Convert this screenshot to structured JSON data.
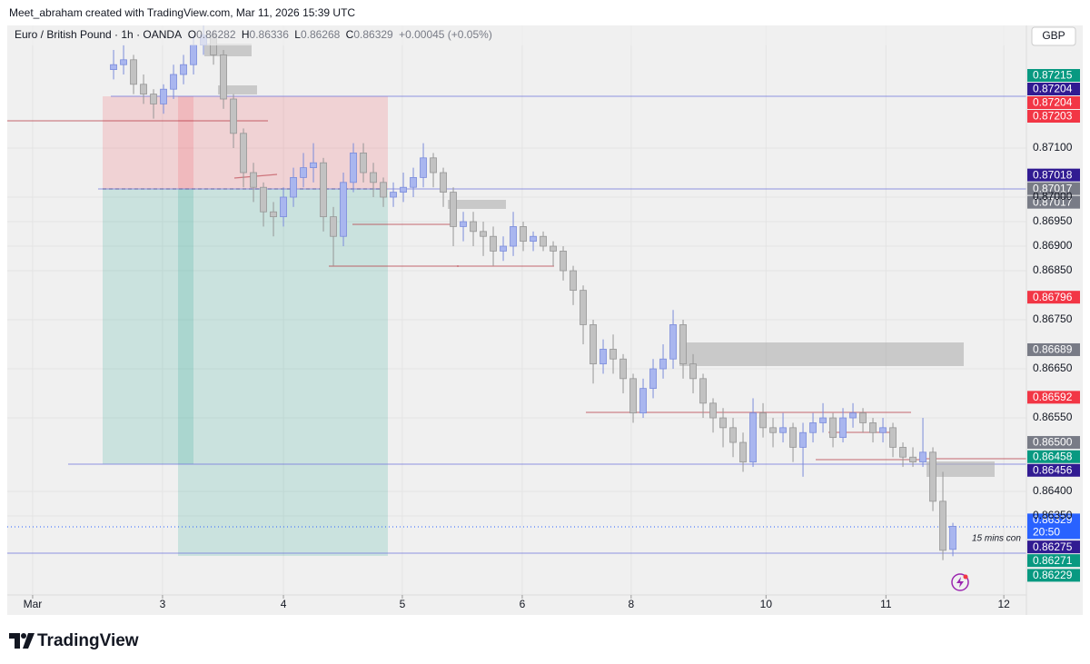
{
  "chart_data": {
    "type": "candlestick",
    "attribution": "Meet_abraham created with TradingView.com, Mar 11, 2026 15:39 UTC",
    "symbol": "Euro / British Pound · 1h · OANDA",
    "legend": [
      {
        "key": "O",
        "value": "0.86282"
      },
      {
        "key": "H",
        "value": "0.86336"
      },
      {
        "key": "L",
        "value": "0.86268"
      },
      {
        "key": "C",
        "value": "0.86329"
      }
    ],
    "change": "+0.00045 (+0.05%)",
    "currency": "GBP",
    "up_color": "#a9b6ef",
    "down_color": "#c2c2c2",
    "xlim": [
      -10.64,
      91.36
    ],
    "xticks": [
      {
        "value": -8.1,
        "label": "Mar"
      },
      {
        "value": 4.9,
        "label": "3"
      },
      {
        "value": 17.0,
        "label": "4"
      },
      {
        "value": 28.9,
        "label": "5"
      },
      {
        "value": 40.9,
        "label": "6"
      },
      {
        "value": 51.8,
        "label": "8"
      },
      {
        "value": 65.3,
        "label": "10"
      },
      {
        "value": 77.3,
        "label": "11"
      },
      {
        "value": 89.1,
        "label": "12"
      }
    ],
    "ylim": [
      0.86189,
      0.8735
    ],
    "yticks": [
      {
        "value": 0.871,
        "label": "0.87100"
      },
      {
        "value": 0.87,
        "label": "0.87000"
      },
      {
        "value": 0.8695,
        "label": "0.86950"
      },
      {
        "value": 0.869,
        "label": "0.86900"
      },
      {
        "value": 0.8685,
        "label": "0.86850"
      },
      {
        "value": 0.8675,
        "label": "0.86750"
      },
      {
        "value": 0.8665,
        "label": "0.86650"
      },
      {
        "value": 0.8655,
        "label": "0.86550"
      },
      {
        "value": 0.864,
        "label": "0.86400"
      },
      {
        "value": 0.8635,
        "label": "0.86350"
      }
    ],
    "grid": true,
    "ohlc": [
      [
        0.8726,
        0.873,
        0.8724,
        0.8727
      ],
      [
        0.8727,
        0.8731,
        0.8725,
        0.8728
      ],
      [
        0.8728,
        0.8729,
        0.8721,
        0.8723
      ],
      [
        0.8723,
        0.8725,
        0.8719,
        0.8721
      ],
      [
        0.8721,
        0.8722,
        0.8716,
        0.8719
      ],
      [
        0.8719,
        0.8723,
        0.8717,
        0.8722
      ],
      [
        0.8722,
        0.8727,
        0.872,
        0.8725
      ],
      [
        0.8725,
        0.8729,
        0.8723,
        0.8727
      ],
      [
        0.8727,
        0.8733,
        0.8725,
        0.8731
      ],
      [
        0.8731,
        0.8735,
        0.8729,
        0.8733
      ],
      [
        0.8733,
        0.8734,
        0.8727,
        0.8729
      ],
      [
        0.8729,
        0.873,
        0.8718,
        0.872
      ],
      [
        0.872,
        0.8721,
        0.871,
        0.8713
      ],
      [
        0.8713,
        0.8714,
        0.8702,
        0.8705
      ],
      [
        0.8705,
        0.8707,
        0.8699,
        0.8702
      ],
      [
        0.8702,
        0.8703,
        0.8694,
        0.8697
      ],
      [
        0.8697,
        0.8699,
        0.8692,
        0.8696
      ],
      [
        0.8696,
        0.8702,
        0.8694,
        0.87
      ],
      [
        0.87,
        0.8706,
        0.8698,
        0.8704
      ],
      [
        0.8704,
        0.8709,
        0.8702,
        0.8706
      ],
      [
        0.8706,
        0.8711,
        0.8703,
        0.8707
      ],
      [
        0.8707,
        0.8708,
        0.8693,
        0.8696
      ],
      [
        0.8696,
        0.8698,
        0.8686,
        0.8692
      ],
      [
        0.8692,
        0.8705,
        0.869,
        0.8703
      ],
      [
        0.8703,
        0.8711,
        0.8701,
        0.8709
      ],
      [
        0.8709,
        0.8711,
        0.8703,
        0.8705
      ],
      [
        0.8705,
        0.8707,
        0.87,
        0.8703
      ],
      [
        0.8703,
        0.8704,
        0.8698,
        0.87
      ],
      [
        0.87,
        0.8703,
        0.8698,
        0.8701
      ],
      [
        0.8701,
        0.8705,
        0.8699,
        0.8702
      ],
      [
        0.8702,
        0.8706,
        0.87,
        0.8704
      ],
      [
        0.8704,
        0.8711,
        0.8702,
        0.8708
      ],
      [
        0.8708,
        0.8709,
        0.8702,
        0.8705
      ],
      [
        0.8705,
        0.8706,
        0.8698,
        0.8701
      ],
      [
        0.8701,
        0.8702,
        0.869,
        0.8694
      ],
      [
        0.8694,
        0.8697,
        0.8691,
        0.8695
      ],
      [
        0.8695,
        0.8697,
        0.869,
        0.8693
      ],
      [
        0.8693,
        0.8695,
        0.8688,
        0.8692
      ],
      [
        0.8692,
        0.8694,
        0.8686,
        0.8689
      ],
      [
        0.8689,
        0.8692,
        0.8687,
        0.869
      ],
      [
        0.869,
        0.8697,
        0.8688,
        0.8694
      ],
      [
        0.8694,
        0.8695,
        0.8689,
        0.8691
      ],
      [
        0.8691,
        0.8693,
        0.8689,
        0.8692
      ],
      [
        0.8692,
        0.8693,
        0.8689,
        0.869
      ],
      [
        0.869,
        0.8691,
        0.8686,
        0.8689
      ],
      [
        0.8689,
        0.869,
        0.8683,
        0.8685
      ],
      [
        0.8685,
        0.8686,
        0.8678,
        0.8681
      ],
      [
        0.8681,
        0.8682,
        0.867,
        0.8674
      ],
      [
        0.8674,
        0.8675,
        0.8662,
        0.8666
      ],
      [
        0.8666,
        0.8671,
        0.8664,
        0.8669
      ],
      [
        0.8669,
        0.8672,
        0.8664,
        0.8667
      ],
      [
        0.8667,
        0.8668,
        0.866,
        0.8663
      ],
      [
        0.8663,
        0.8664,
        0.8654,
        0.8656
      ],
      [
        0.8656,
        0.8663,
        0.8655,
        0.8661
      ],
      [
        0.8661,
        0.8667,
        0.8659,
        0.8665
      ],
      [
        0.8665,
        0.867,
        0.8663,
        0.8667
      ],
      [
        0.8667,
        0.8677,
        0.8665,
        0.8674
      ],
      [
        0.8674,
        0.8675,
        0.8663,
        0.8666
      ],
      [
        0.8666,
        0.8668,
        0.866,
        0.8663
      ],
      [
        0.8663,
        0.8664,
        0.8655,
        0.8658
      ],
      [
        0.8658,
        0.8659,
        0.8652,
        0.8655
      ],
      [
        0.8655,
        0.8657,
        0.8649,
        0.8653
      ],
      [
        0.8653,
        0.8655,
        0.8647,
        0.865
      ],
      [
        0.865,
        0.8652,
        0.8644,
        0.8646
      ],
      [
        0.8646,
        0.8659,
        0.8645,
        0.8656
      ],
      [
        0.8656,
        0.8658,
        0.8651,
        0.8653
      ],
      [
        0.8653,
        0.8655,
        0.8649,
        0.8652
      ],
      [
        0.8652,
        0.8656,
        0.865,
        0.8653
      ],
      [
        0.8653,
        0.8654,
        0.8646,
        0.8649
      ],
      [
        0.8649,
        0.8654,
        0.8643,
        0.8652
      ],
      [
        0.8652,
        0.8656,
        0.865,
        0.8654
      ],
      [
        0.8654,
        0.8658,
        0.8652,
        0.8655
      ],
      [
        0.8655,
        0.8656,
        0.8649,
        0.8651
      ],
      [
        0.8651,
        0.8657,
        0.865,
        0.8655
      ],
      [
        0.8655,
        0.8658,
        0.8653,
        0.8656
      ],
      [
        0.8656,
        0.8657,
        0.8652,
        0.8654
      ],
      [
        0.8654,
        0.8655,
        0.865,
        0.8652
      ],
      [
        0.8652,
        0.8655,
        0.865,
        0.8653
      ],
      [
        0.8653,
        0.8654,
        0.8647,
        0.8649
      ],
      [
        0.8649,
        0.865,
        0.8645,
        0.8647
      ],
      [
        0.8647,
        0.8649,
        0.8645,
        0.8646
      ],
      [
        0.8646,
        0.8655,
        0.8645,
        0.8648
      ],
      [
        0.8648,
        0.8649,
        0.8636,
        0.8638
      ],
      [
        0.8638,
        0.8644,
        0.8626,
        0.8628
      ],
      [
        0.86282,
        0.86336,
        0.86268,
        0.86329
      ]
    ],
    "price_labels": [
      {
        "value": 0.87215,
        "label": "0.87215",
        "color": "#089981"
      },
      {
        "value": 0.87204,
        "label": "0.87204",
        "color": "#311b92"
      },
      {
        "value": 0.87204,
        "label": "0.87204",
        "color": "#f23645"
      },
      {
        "value": 0.87203,
        "label": "0.87203",
        "color": "#f23645"
      },
      {
        "value": 0.87018,
        "label": "0.87018",
        "color": "#311b92"
      },
      {
        "value": 0.87017,
        "label": "0.87017",
        "color": "#787b86"
      },
      {
        "value": 0.87017,
        "label": "0.87017",
        "color": "#787b86"
      },
      {
        "value": 0.86796,
        "label": "0.86796",
        "color": "#f23645"
      },
      {
        "value": 0.86689,
        "label": "0.86689",
        "color": "#787b86"
      },
      {
        "value": 0.86592,
        "label": "0.86592",
        "color": "#f23645"
      },
      {
        "value": 0.865,
        "label": "0.86500",
        "color": "#787b86"
      },
      {
        "value": 0.86458,
        "label": "0.86458",
        "color": "#089981"
      },
      {
        "value": 0.86456,
        "label": "0.86456",
        "color": "#311b92"
      },
      {
        "value": 0.86329,
        "label": "0.86329",
        "color": "#2962ff",
        "countdown": "20:50"
      },
      {
        "value": 0.86275,
        "label": "0.86275",
        "color": "#311b92"
      },
      {
        "value": 0.86271,
        "label": "0.86271",
        "color": "#089981"
      },
      {
        "value": 0.86229,
        "label": "0.86229",
        "color": "#089981"
      }
    ],
    "annotation": "15 mins con",
    "brand": "TradingView"
  }
}
